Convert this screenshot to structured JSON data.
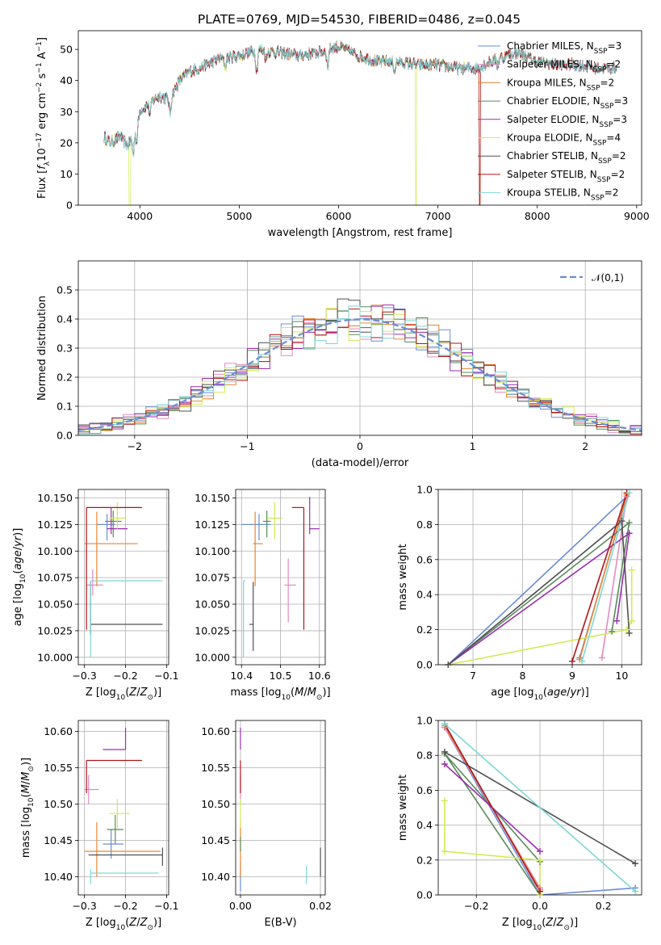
{
  "figure": {
    "title": "PLATE=0769, MJD=54530, FIBERID=0486, z=0.045"
  },
  "colors": {
    "Chabrier MILES": "#6b8dd6",
    "Salpeter MILES": "#e58ac0",
    "Kroupa MILES": "#e8862f",
    "Chabrier ELODIE": "#5a8a5a",
    "Salpeter ELODIE": "#9b2fb0",
    "Kroupa ELODIE": "#d4ea55",
    "Chabrier STELIB": "#505050",
    "Salpeter STELIB": "#b0141c",
    "Kroupa STELIB": "#7fd6d6"
  },
  "chart_data": [
    {
      "id": "spectrum",
      "type": "line",
      "title": "PLATE=0769, MJD=54530, FIBERID=0486, z=0.045",
      "xlabel": "wavelength [Angstrom, rest frame]",
      "ylabel": "Flux [f_λ 10^-17 erg cm^-2 s^-1 A^-1]",
      "xlim": [
        3380,
        9050
      ],
      "ylim": [
        0,
        56
      ],
      "xticks": [
        4000,
        5000,
        6000,
        7000,
        8000,
        9000
      ],
      "yticks": [
        0,
        10,
        20,
        30,
        40,
        50
      ],
      "grid": false,
      "legend": "top-right",
      "continuum": {
        "x": [
          3640,
          3700,
          3800,
          3880,
          3950,
          4000,
          4100,
          4200,
          4300,
          4400,
          4500,
          4600,
          4800,
          5000,
          5200,
          5400,
          5600,
          5800,
          6000,
          6200,
          6400,
          6600,
          6800,
          7000,
          7200,
          7400,
          7600,
          7800,
          8000,
          8200,
          8400,
          8600,
          8800
        ],
        "y": [
          22,
          20,
          22,
          19,
          24,
          30,
          33,
          35,
          34,
          40,
          43,
          44,
          47,
          48,
          50,
          49,
          48,
          49,
          51,
          48,
          46,
          46,
          45,
          45,
          44,
          44,
          47,
          49,
          46,
          45,
          45,
          44,
          44
        ]
      },
      "series": [
        {
          "name": "Chabrier MILES, N_SSP=3"
        },
        {
          "name": "Salpeter MILES, N_SSP=2"
        },
        {
          "name": "Kroupa MILES, N_SSP=2"
        },
        {
          "name": "Chabrier ELODIE, N_SSP=3"
        },
        {
          "name": "Salpeter ELODIE, N_SSP=3"
        },
        {
          "name": "Kroupa ELODIE, N_SSP=4"
        },
        {
          "name": "Chabrier STELIB, N_SSP=2"
        },
        {
          "name": "Salpeter STELIB, N_SSP=2"
        },
        {
          "name": "Kroupa STELIB, N_SSP=2"
        }
      ]
    },
    {
      "id": "residuals",
      "type": "line",
      "xlabel": "(data-model)/error",
      "ylabel": "Normed distribution",
      "xlim": [
        -2.5,
        2.5
      ],
      "ylim": [
        0,
        0.6
      ],
      "xticks": [
        -2,
        -1,
        0,
        1,
        2
      ],
      "yticks": [
        0.0,
        0.1,
        0.2,
        0.3,
        0.4,
        0.5
      ],
      "grid": true,
      "legend": "top-right",
      "reference": {
        "name": "𝒩(0,1)",
        "style": "dashed",
        "color": "#6b8dd6"
      },
      "histogram_bin_width": 0.1
    },
    {
      "id": "age-vs-Z",
      "type": "scatter",
      "xlabel": "Z [log10(Z/Z⊙)]",
      "ylabel": "age [log10(age/yr)]",
      "xlim": [
        -0.315,
        -0.095
      ],
      "ylim": [
        9.993,
        10.158
      ],
      "xticks": [
        -0.3,
        -0.2,
        -0.1
      ],
      "yticks": [
        10.0,
        10.025,
        10.05,
        10.075,
        10.1,
        10.125,
        10.15
      ],
      "grid": true,
      "points": [
        {
          "series": "Chabrier MILES",
          "x": -0.245,
          "y": 10.125,
          "xerr": [
            0.025,
            0.02
          ],
          "yerr": [
            0.015,
            0.01
          ]
        },
        {
          "series": "Salpeter MILES",
          "x": -0.28,
          "y": 10.068,
          "xerr": [
            0.015,
            0.025
          ],
          "yerr": [
            0.01,
            0.015
          ]
        },
        {
          "series": "Kroupa MILES",
          "x": -0.27,
          "y": 10.107,
          "xerr": [
            0.03,
            0.1
          ],
          "yerr": [
            0.04,
            0.03
          ]
        },
        {
          "series": "Chabrier ELODIE",
          "x": -0.23,
          "y": 10.128,
          "xerr": [
            0.02,
            0.02
          ],
          "yerr": [
            0.015,
            0.01
          ]
        },
        {
          "series": "Salpeter ELODIE",
          "x": -0.235,
          "y": 10.121,
          "xerr": [
            0.01,
            0.04
          ],
          "yerr": [
            0.005,
            0.02
          ]
        },
        {
          "series": "Kroupa ELODIE",
          "x": -0.22,
          "y": 10.131,
          "xerr": [
            0.02,
            0.02
          ],
          "yerr": [
            0.01,
            0.015
          ]
        },
        {
          "series": "Chabrier STELIB",
          "x": -0.285,
          "y": 10.031,
          "xerr": [
            0.0,
            0.175
          ],
          "yerr": [
            0.01,
            0.04
          ]
        },
        {
          "series": "Salpeter STELIB",
          "x": -0.295,
          "y": 10.141,
          "xerr": [
            0.0,
            0.135
          ],
          "yerr": [
            0.115,
            0.0
          ]
        },
        {
          "series": "Kroupa STELIB",
          "x": -0.285,
          "y": 10.072,
          "xerr": [
            0.0,
            0.175
          ],
          "yerr": [
            0.072,
            0.0
          ]
        }
      ]
    },
    {
      "id": "age-vs-mass",
      "type": "scatter",
      "xlabel": "mass [log10(M/M⊙)]",
      "ylabel": "",
      "xlim": [
        10.385,
        10.615
      ],
      "ylim": [
        9.993,
        10.158
      ],
      "xticks": [
        10.4,
        10.5,
        10.6
      ],
      "yticks": [
        10.0,
        10.025,
        10.05,
        10.075,
        10.1,
        10.125,
        10.15
      ],
      "grid": true,
      "points": [
        {
          "series": "Chabrier MILES",
          "x": 10.445,
          "y": 10.125,
          "xerr": [
            0.045,
            0.03
          ],
          "yerr": [
            0.015,
            0.01
          ]
        },
        {
          "series": "Salpeter MILES",
          "x": 10.52,
          "y": 10.068,
          "xerr": [
            0.01,
            0.02
          ],
          "yerr": [
            0.035,
            0.025
          ]
        },
        {
          "series": "Kroupa MILES",
          "x": 10.435,
          "y": 10.107,
          "xerr": [
            0.005,
            0.02
          ],
          "yerr": [
            0.04,
            0.03
          ]
        },
        {
          "series": "Chabrier ELODIE",
          "x": 10.465,
          "y": 10.128,
          "xerr": [
            0.01,
            0.01
          ],
          "yerr": [
            0.015,
            0.01
          ]
        },
        {
          "series": "Salpeter ELODIE",
          "x": 10.575,
          "y": 10.121,
          "xerr": [
            0.0,
            0.025
          ],
          "yerr": [
            0.005,
            0.03
          ]
        },
        {
          "series": "Kroupa ELODIE",
          "x": 10.485,
          "y": 10.131,
          "xerr": [
            0.02,
            0.02
          ],
          "yerr": [
            0.02,
            0.015
          ]
        },
        {
          "series": "Chabrier STELIB",
          "x": 10.43,
          "y": 10.031,
          "xerr": [
            0.01,
            0.0
          ],
          "yerr": [
            0.025,
            0.04
          ]
        },
        {
          "series": "Salpeter STELIB",
          "x": 10.56,
          "y": 10.141,
          "xerr": [
            0.03,
            0.0
          ],
          "yerr": [
            0.115,
            0.0
          ]
        },
        {
          "series": "Kroupa STELIB",
          "x": 10.405,
          "y": 10.072,
          "xerr": [
            0.0,
            0.005
          ],
          "yerr": [
            0.072,
            0.0
          ]
        }
      ]
    },
    {
      "id": "weight-vs-age",
      "type": "line",
      "xlabel": "age [log10(age/yr)]",
      "ylabel": "mass weight",
      "xlim": [
        6.3,
        10.4
      ],
      "ylim": [
        0,
        1.0
      ],
      "xticks": [
        7,
        8,
        9,
        10
      ],
      "yticks": [
        0.0,
        0.2,
        0.4,
        0.6,
        0.8,
        1.0
      ],
      "grid": true,
      "series": [
        {
          "name": "Chabrier MILES",
          "x": [
            9.15,
            10.1,
            6.5
          ],
          "y": [
            0.04,
            0.96,
            0.0
          ]
        },
        {
          "name": "Salpeter MILES",
          "x": [
            9.6,
            10.1
          ],
          "y": [
            0.04,
            0.96
          ]
        },
        {
          "name": "Kroupa MILES",
          "x": [
            9.15,
            10.1
          ],
          "y": [
            0.03,
            0.97
          ]
        },
        {
          "name": "Chabrier ELODIE",
          "x": [
            9.8,
            10.15,
            6.5
          ],
          "y": [
            0.19,
            0.81,
            0.0
          ]
        },
        {
          "name": "Salpeter ELODIE",
          "x": [
            9.9,
            10.15,
            6.5
          ],
          "y": [
            0.25,
            0.75,
            0.0
          ]
        },
        {
          "name": "Kroupa ELODIE",
          "x": [
            10.2,
            10.2,
            10.1,
            6.5
          ],
          "y": [
            0.54,
            0.25,
            0.2,
            0.0
          ]
        },
        {
          "name": "Chabrier STELIB",
          "x": [
            10.15,
            10.0,
            6.5
          ],
          "y": [
            0.18,
            0.82,
            0.0
          ]
        },
        {
          "name": "Salpeter STELIB",
          "x": [
            10.1,
            9.0
          ],
          "y": [
            0.98,
            0.02
          ]
        },
        {
          "name": "Kroupa STELIB",
          "x": [
            10.15,
            9.2
          ],
          "y": [
            0.98,
            0.02
          ]
        }
      ]
    },
    {
      "id": "mass-vs-Z",
      "type": "scatter",
      "xlabel": "Z [log10(Z/Z⊙)]",
      "ylabel": "mass [log10(M/M⊙)]",
      "xlim": [
        -0.315,
        -0.095
      ],
      "ylim": [
        10.375,
        10.615
      ],
      "xticks": [
        -0.3,
        -0.2,
        -0.1
      ],
      "yticks": [
        10.4,
        10.45,
        10.5,
        10.55,
        10.6
      ],
      "grid": true,
      "points": [
        {
          "series": "Chabrier MILES",
          "x": -0.235,
          "y": 10.445,
          "xerr": [
            0.02,
            0.03
          ],
          "yerr": [
            0.02,
            0.02
          ]
        },
        {
          "series": "Salpeter MILES",
          "x": -0.29,
          "y": 10.52,
          "xerr": [
            0.01,
            0.025
          ],
          "yerr": [
            0.02,
            0.02
          ]
        },
        {
          "series": "Kroupa MILES",
          "x": -0.27,
          "y": 10.435,
          "xerr": [
            0.03,
            0.155
          ],
          "yerr": [
            0.035,
            0.04
          ]
        },
        {
          "series": "Chabrier ELODIE",
          "x": -0.225,
          "y": 10.465,
          "xerr": [
            0.02,
            0.02
          ],
          "yerr": [
            0.02,
            0.02
          ]
        },
        {
          "series": "Salpeter ELODIE",
          "x": -0.2,
          "y": 10.575,
          "xerr": [
            0.055,
            0.0
          ],
          "yerr": [
            0.0,
            0.03
          ]
        },
        {
          "series": "Kroupa ELODIE",
          "x": -0.22,
          "y": 10.487,
          "xerr": [
            0.02,
            0.03
          ],
          "yerr": [
            0.02,
            0.02
          ]
        },
        {
          "series": "Chabrier STELIB",
          "x": -0.11,
          "y": 10.43,
          "xerr": [
            0.18,
            0.0
          ],
          "yerr": [
            0.015,
            0.01
          ]
        },
        {
          "series": "Salpeter STELIB",
          "x": -0.295,
          "y": 10.56,
          "xerr": [
            0.0,
            0.135
          ],
          "yerr": [
            0.045,
            0.0
          ]
        },
        {
          "series": "Kroupa STELIB",
          "x": -0.285,
          "y": 10.405,
          "xerr": [
            0.0,
            0.165
          ],
          "yerr": [
            0.015,
            0.005
          ]
        }
      ]
    },
    {
      "id": "mass-vs-EBV",
      "type": "scatter",
      "xlabel": "E(B-V)",
      "ylabel": "",
      "xlim": [
        -0.0012,
        0.0212
      ],
      "ylim": [
        10.375,
        10.615
      ],
      "xticks": [
        0.0,
        0.02
      ],
      "xticklabels": [
        "0.00",
        "0.02"
      ],
      "yticks": [
        10.4,
        10.45,
        10.5,
        10.55,
        10.6
      ],
      "grid": true,
      "points": [
        {
          "series": "Chabrier MILES",
          "x": 0.0,
          "y": 10.4,
          "yerr": [
            0.02,
            0.02
          ]
        },
        {
          "series": "Salpeter MILES",
          "x": 0.0,
          "y": 10.52,
          "yerr": [
            0.02,
            0.02
          ]
        },
        {
          "series": "Kroupa MILES",
          "x": 0.0,
          "y": 10.435,
          "yerr": [
            0.035,
            0.04
          ]
        },
        {
          "series": "Chabrier ELODIE",
          "x": 0.0,
          "y": 10.445,
          "yerr": [
            0.01,
            0.01
          ]
        },
        {
          "series": "Salpeter ELODIE",
          "x": 0.0,
          "y": 10.575,
          "yerr": [
            0.0,
            0.03
          ]
        },
        {
          "series": "Kroupa ELODIE",
          "x": 0.0,
          "y": 10.487,
          "yerr": [
            0.02,
            0.02
          ]
        },
        {
          "series": "Chabrier STELIB",
          "x": 0.02,
          "y": 10.42,
          "yerr": [
            0.02,
            0.02
          ]
        },
        {
          "series": "Salpeter STELIB",
          "x": 0.0,
          "y": 10.54,
          "yerr": [
            0.025,
            0.02
          ]
        },
        {
          "series": "Kroupa STELIB",
          "x": 0.0165,
          "y": 10.405,
          "yerr": [
            0.015,
            0.01
          ]
        }
      ]
    },
    {
      "id": "weight-vs-Z",
      "type": "line",
      "xlabel": "Z [log10(Z/Z⊙)]",
      "ylabel": "mass weight",
      "xlim": [
        -0.32,
        0.32
      ],
      "ylim": [
        0,
        1.0
      ],
      "xticks": [
        -0.2,
        0.0,
        0.2
      ],
      "yticks": [
        0.0,
        0.2,
        0.4,
        0.6,
        0.8,
        1.0
      ],
      "grid": true,
      "series": [
        {
          "name": "Chabrier MILES",
          "x": [
            0.3,
            0.0,
            -0.3
          ],
          "y": [
            0.04,
            0.0,
            0.96
          ]
        },
        {
          "name": "Salpeter MILES",
          "x": [
            0.0,
            -0.3
          ],
          "y": [
            0.04,
            0.96
          ]
        },
        {
          "name": "Kroupa MILES",
          "x": [
            0.0,
            -0.3
          ],
          "y": [
            0.03,
            0.97
          ]
        },
        {
          "name": "Chabrier ELODIE",
          "x": [
            0.0,
            -0.3,
            0.0
          ],
          "y": [
            0.19,
            0.81,
            0.0
          ]
        },
        {
          "name": "Salpeter ELODIE",
          "x": [
            0.0,
            -0.3
          ],
          "y": [
            0.25,
            0.75
          ]
        },
        {
          "name": "Kroupa ELODIE",
          "x": [
            -0.3,
            -0.3,
            0.0,
            0.0
          ],
          "y": [
            0.54,
            0.25,
            0.2,
            0.0
          ]
        },
        {
          "name": "Chabrier STELIB",
          "x": [
            0.3,
            -0.3
          ],
          "y": [
            0.18,
            0.82
          ]
        },
        {
          "name": "Salpeter STELIB",
          "x": [
            -0.3,
            0.0
          ],
          "y": [
            0.98,
            0.02
          ]
        },
        {
          "name": "Kroupa STELIB",
          "x": [
            -0.3,
            0.3
          ],
          "y": [
            0.98,
            0.02
          ]
        }
      ]
    }
  ]
}
